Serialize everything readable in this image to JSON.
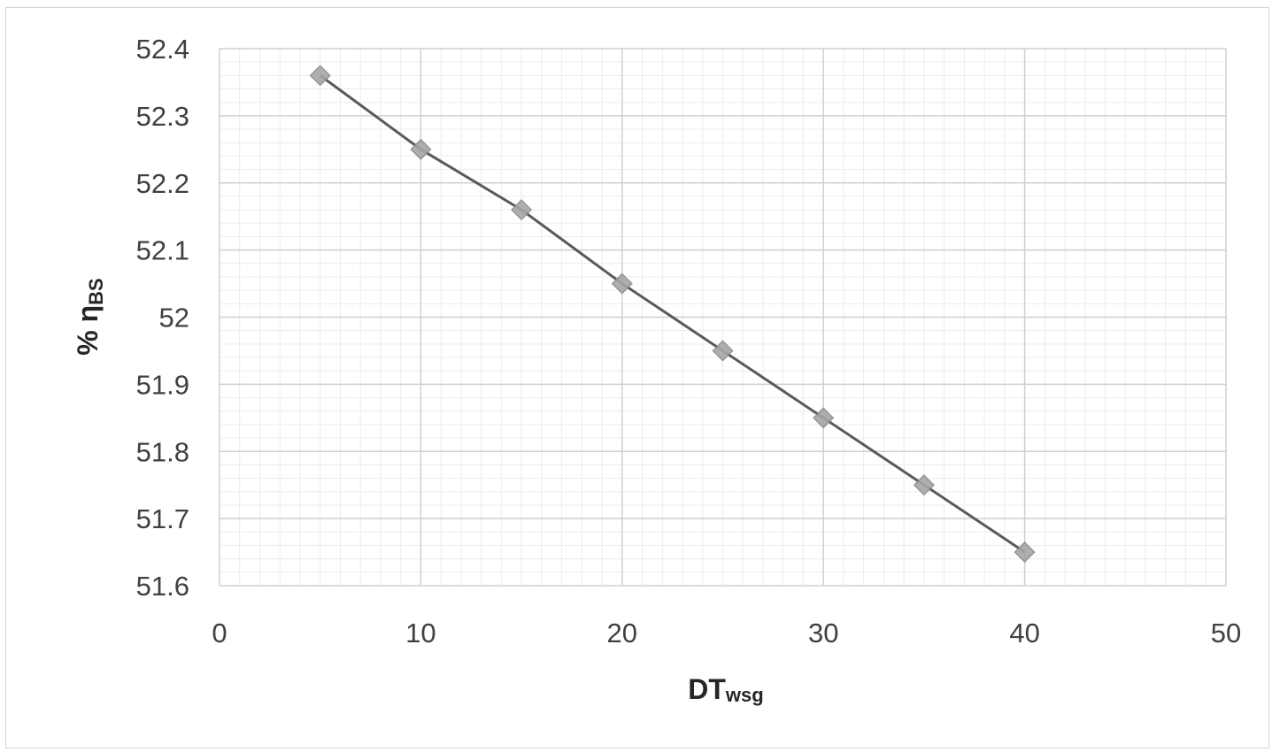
{
  "chart_data": {
    "type": "line",
    "title": "",
    "xlabel": "DTwsg",
    "xlabel_main": "DT",
    "xlabel_sub": "wsg",
    "ylabel": "% ηBS",
    "ylabel_main": "% η",
    "ylabel_sub": "BS",
    "xlim": [
      0,
      50
    ],
    "ylim": [
      51.6,
      52.4
    ],
    "x_ticks": [
      0,
      10,
      20,
      30,
      40,
      50
    ],
    "x_tick_labels": [
      "0",
      "10",
      "20",
      "30",
      "40",
      "50"
    ],
    "y_ticks": [
      51.6,
      51.7,
      51.8,
      51.9,
      52.0,
      52.1,
      52.2,
      52.3,
      52.4
    ],
    "y_tick_labels": [
      "51.6",
      "51.7",
      "51.8",
      "51.9",
      "52",
      "52.1",
      "52.2",
      "52.3",
      "52.4"
    ],
    "grid": true,
    "minor_grid": true,
    "marker": "diamond",
    "series": [
      {
        "color": "#595959",
        "marker_color": "#a6a6a6",
        "x": [
          5,
          10,
          15,
          20,
          25,
          30,
          35,
          40
        ],
        "y": [
          52.36,
          52.25,
          52.16,
          52.05,
          51.95,
          51.85,
          51.75,
          51.65
        ]
      }
    ]
  }
}
